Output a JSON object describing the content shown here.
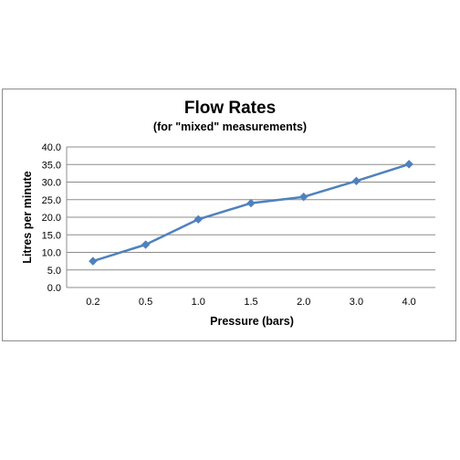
{
  "chart_data": {
    "type": "line",
    "title": "Flow Rates",
    "subtitle": "(for \"mixed\" measurements)",
    "xlabel": "Pressure (bars)",
    "ylabel": "Litres per minute",
    "categories": [
      "0.2",
      "0.5",
      "1.0",
      "1.5",
      "2.0",
      "3.0",
      "4.0"
    ],
    "series": [
      {
        "values": [
          7.5,
          12.2,
          19.4,
          24.0,
          25.8,
          30.3,
          35.1
        ]
      }
    ],
    "ylim": [
      0,
      40
    ],
    "yticks": [
      "0.0",
      "5.0",
      "10.0",
      "15.0",
      "20.0",
      "25.0",
      "30.0",
      "35.0",
      "40.0"
    ],
    "grid": true,
    "legend": "none",
    "line_color": "#4f81bd",
    "marker": "diamond"
  }
}
